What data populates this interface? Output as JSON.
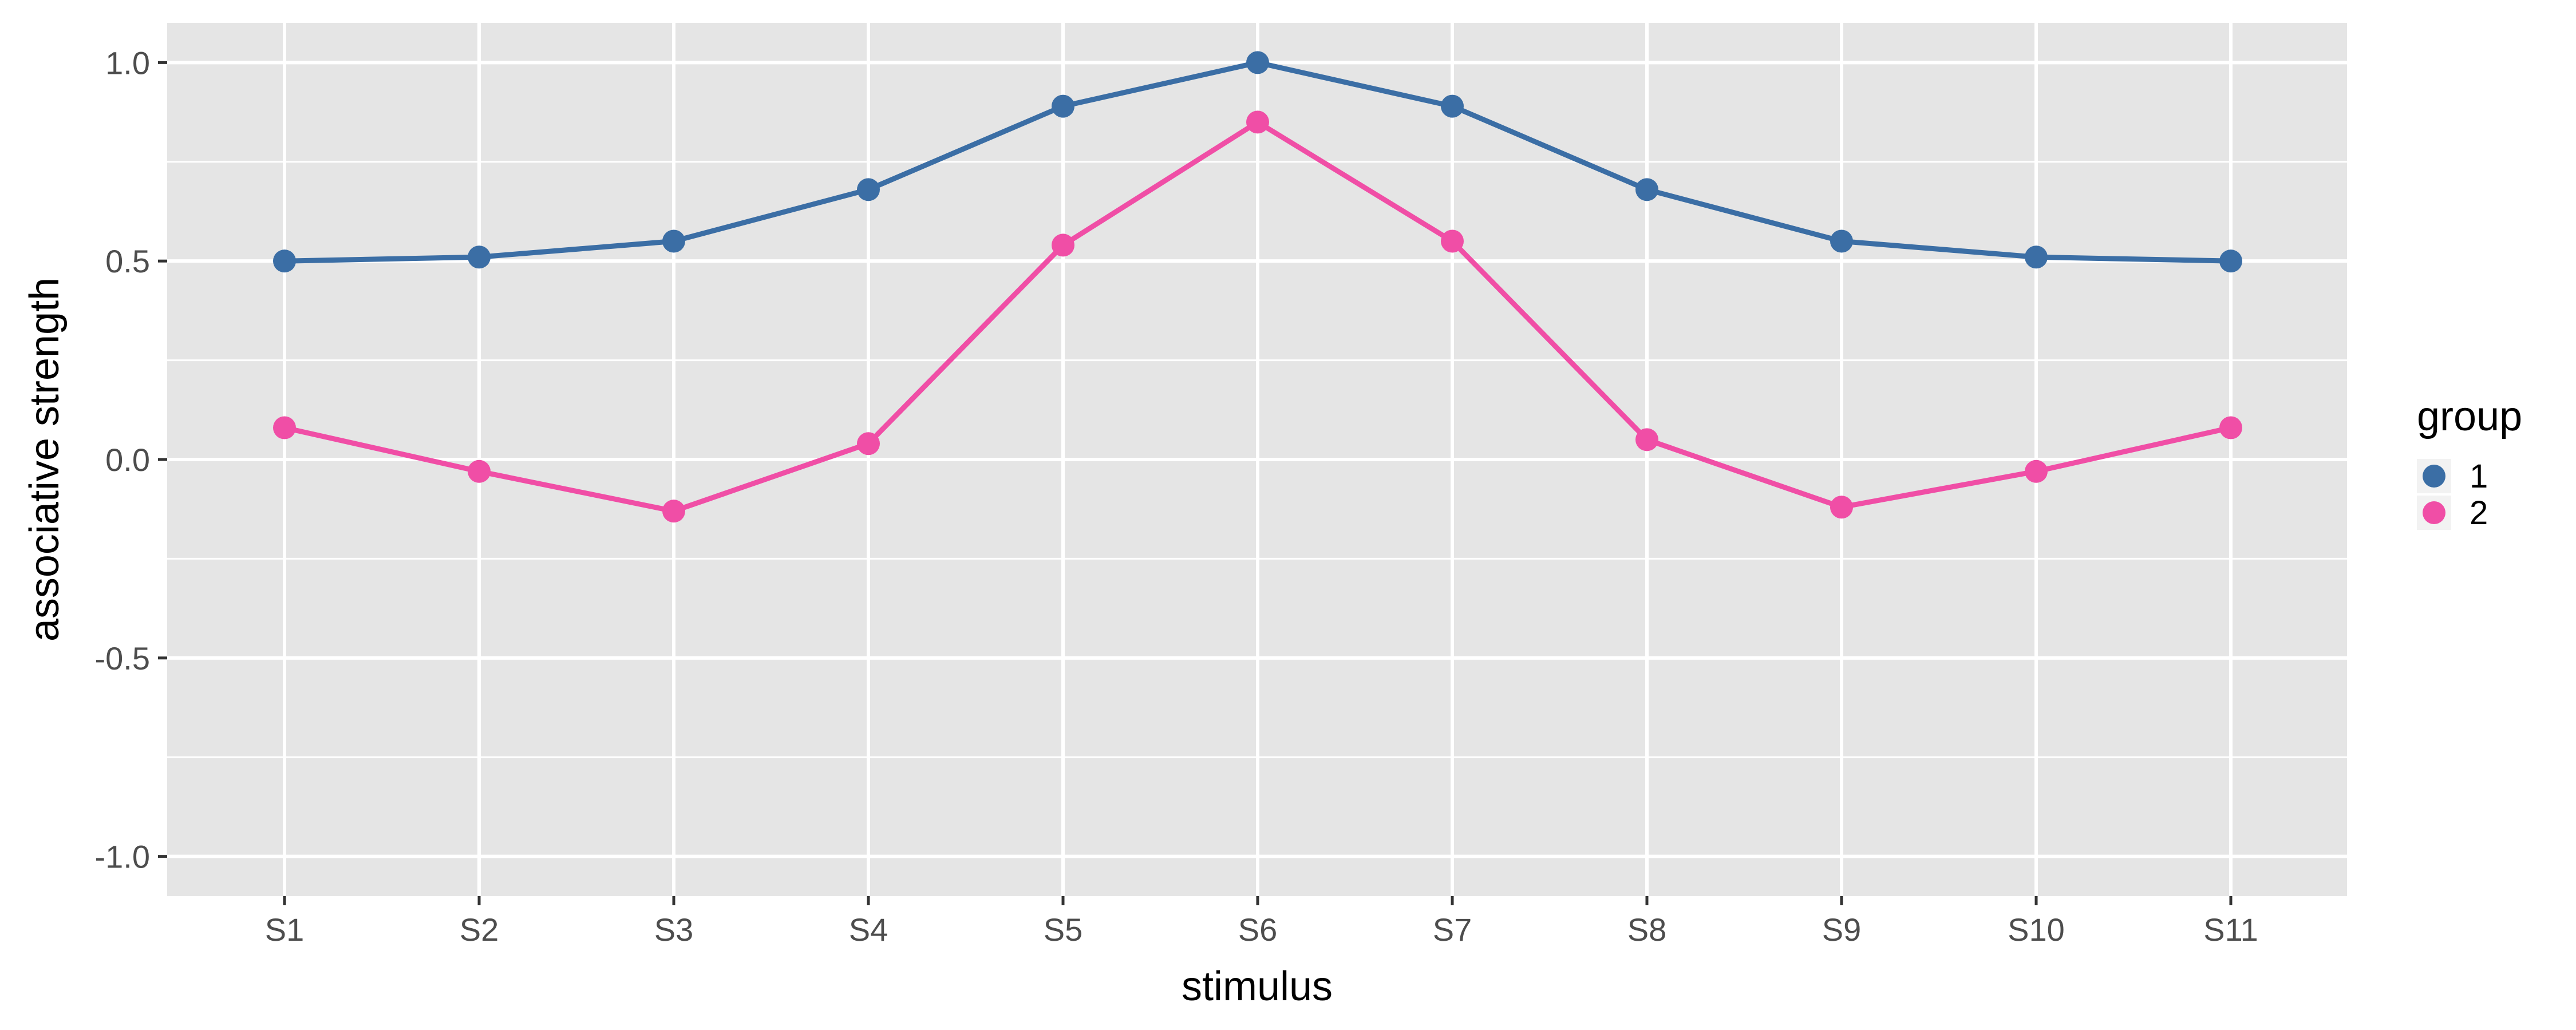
{
  "chart_data": {
    "type": "line",
    "title": "",
    "xlabel": "stimulus",
    "ylabel": "associative strength",
    "categories": [
      "S1",
      "S2",
      "S3",
      "S4",
      "S5",
      "S6",
      "S7",
      "S8",
      "S9",
      "S10",
      "S11"
    ],
    "ylim": [
      -1.1,
      1.1
    ],
    "yticks": [
      -1.0,
      -0.5,
      0.0,
      0.5,
      1.0
    ],
    "ytick_labels": [
      "-1.0",
      "-0.5",
      "0.0",
      "0.5",
      "1.0"
    ],
    "grid": true,
    "legend": {
      "title": "group",
      "position": "right"
    },
    "series": [
      {
        "name": "1",
        "color": "#3b6ea5",
        "values": [
          0.5,
          0.51,
          0.55,
          0.68,
          0.89,
          1.0,
          0.89,
          0.68,
          0.55,
          0.51,
          0.5
        ]
      },
      {
        "name": "2",
        "color": "#f04ea6",
        "values": [
          0.08,
          -0.03,
          -0.13,
          0.04,
          0.54,
          0.85,
          0.55,
          0.05,
          -0.12,
          -0.03,
          0.08
        ]
      }
    ]
  }
}
